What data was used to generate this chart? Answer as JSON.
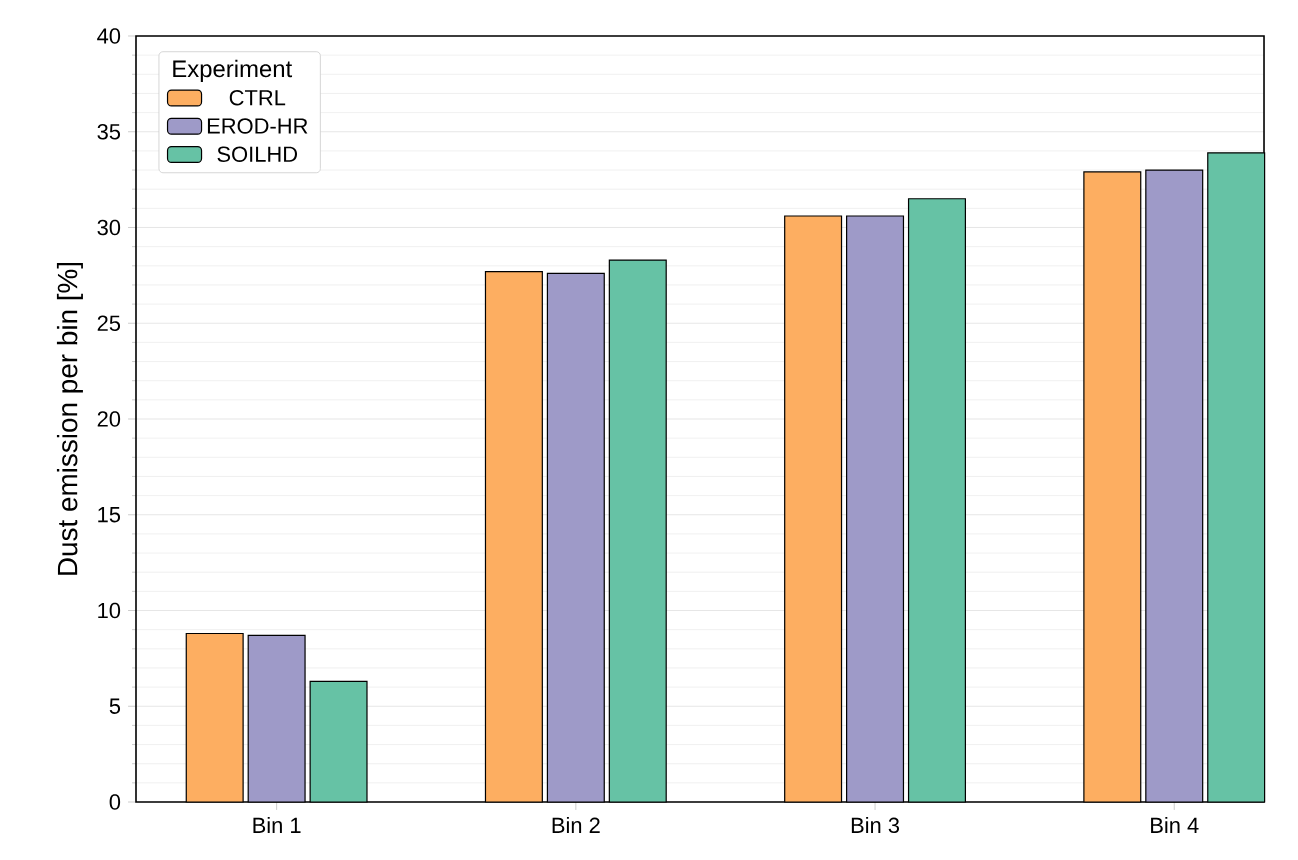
{
  "chart_data": {
    "type": "bar",
    "ylabel": "Dust emission per bin [%]",
    "legend_title": "Experiment",
    "categories": [
      "Bin 1",
      "Bin 2",
      "Bin 3",
      "Bin 4"
    ],
    "series": [
      {
        "name": "CTRL",
        "color": "#fdae61",
        "values": [
          8.8,
          27.7,
          30.6,
          32.9
        ]
      },
      {
        "name": "EROD-HR",
        "color": "#9e9ac8",
        "values": [
          8.7,
          27.6,
          30.6,
          33.0
        ]
      },
      {
        "name": "SOILHD",
        "color": "#66c2a5",
        "values": [
          6.3,
          28.3,
          31.5,
          33.9
        ]
      }
    ],
    "ylim": [
      0,
      40
    ],
    "yticks": [
      0,
      5,
      10,
      15,
      20,
      25,
      30,
      35,
      40
    ],
    "grid": "y",
    "legend": "top left"
  }
}
